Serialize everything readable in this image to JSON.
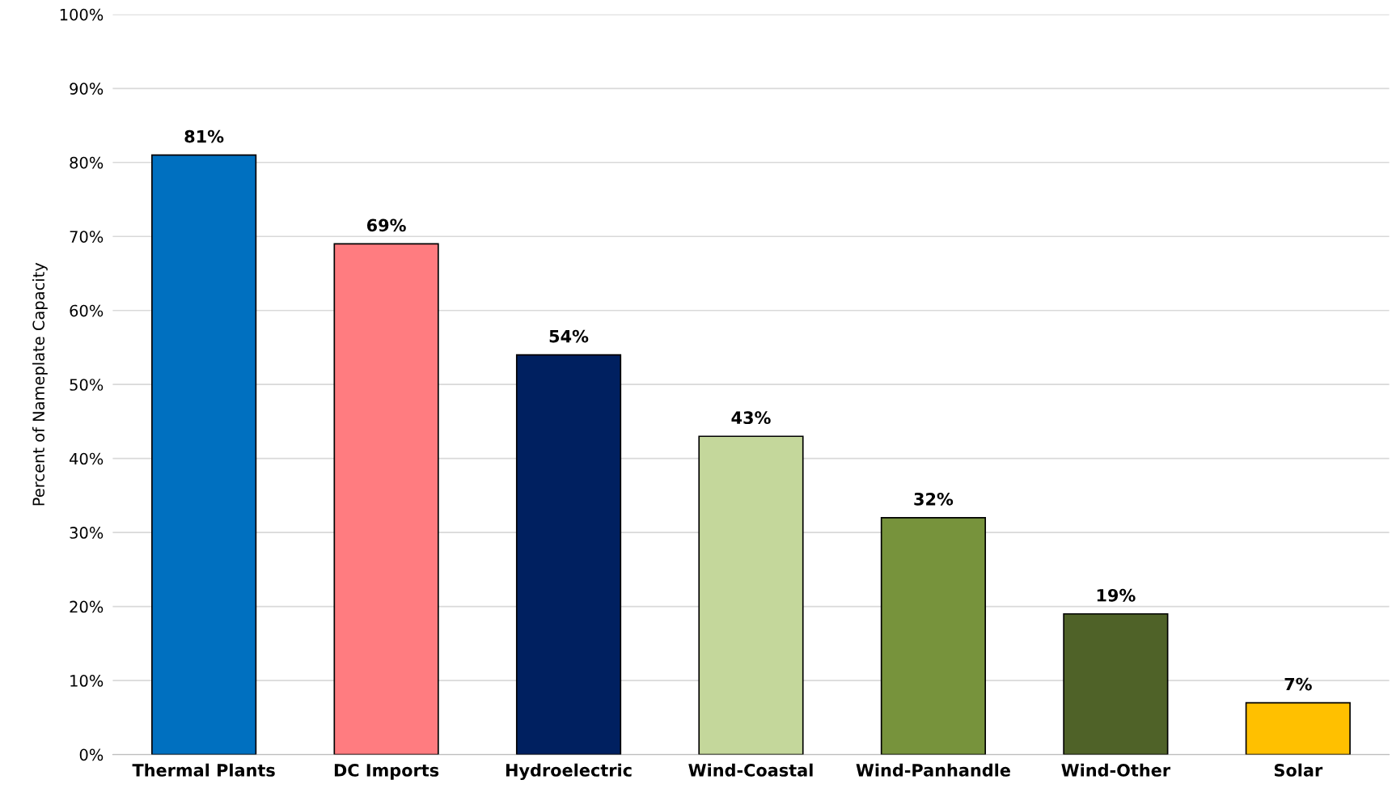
{
  "chart_data": {
    "type": "bar",
    "ylabel": "Percent of Nameplate Capacity",
    "categories": [
      "Thermal Plants",
      "DC Imports",
      "Hydroelectric",
      "Wind-Coastal",
      "Wind-Panhandle",
      "Wind-Other",
      "Solar"
    ],
    "values": [
      81,
      69,
      54,
      43,
      32,
      19,
      7
    ],
    "value_labels": [
      "81%",
      "69%",
      "54%",
      "43%",
      "32%",
      "19%",
      "7%"
    ],
    "colors": [
      "#0070c0",
      "#ff7c80",
      "#002060",
      "#c4d79b",
      "#77933c",
      "#4f6228",
      "#ffc000"
    ],
    "ylim": [
      0,
      100
    ],
    "yticks": [
      {
        "value": 0,
        "label": "0%"
      },
      {
        "value": 10,
        "label": "10%"
      },
      {
        "value": 20,
        "label": "20%"
      },
      {
        "value": 30,
        "label": "30%"
      },
      {
        "value": 40,
        "label": "40%"
      },
      {
        "value": 50,
        "label": "50%"
      },
      {
        "value": 60,
        "label": "60%"
      },
      {
        "value": 70,
        "label": "70%"
      },
      {
        "value": 80,
        "label": "80%"
      },
      {
        "value": 90,
        "label": "90%"
      },
      {
        "value": 100,
        "label": "100%"
      }
    ],
    "grid": "y"
  }
}
